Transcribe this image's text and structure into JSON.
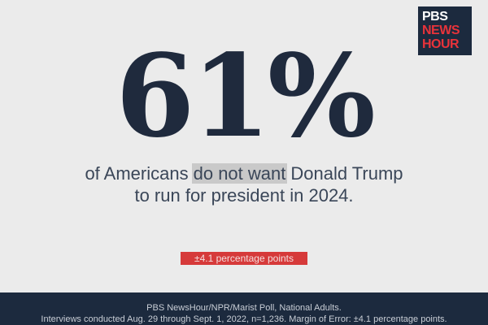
{
  "logo": {
    "line1": "PBS",
    "line2": "NEWS",
    "line3": "HOUR"
  },
  "headline": {
    "stat": "61%",
    "line1": [
      "of Americans",
      "do not want",
      "Donald Trump"
    ],
    "line2": "to run for president in 2024."
  },
  "margin_of_error": "±4.1 percentage points",
  "footer": {
    "line1": "PBS NewsHour/NPR/Marist Poll, National Adults.",
    "line2": "Interviews conducted Aug. 29 through Sept. 1, 2022, n=1,236. Margin of Error: ±4.1 percentage points."
  }
}
